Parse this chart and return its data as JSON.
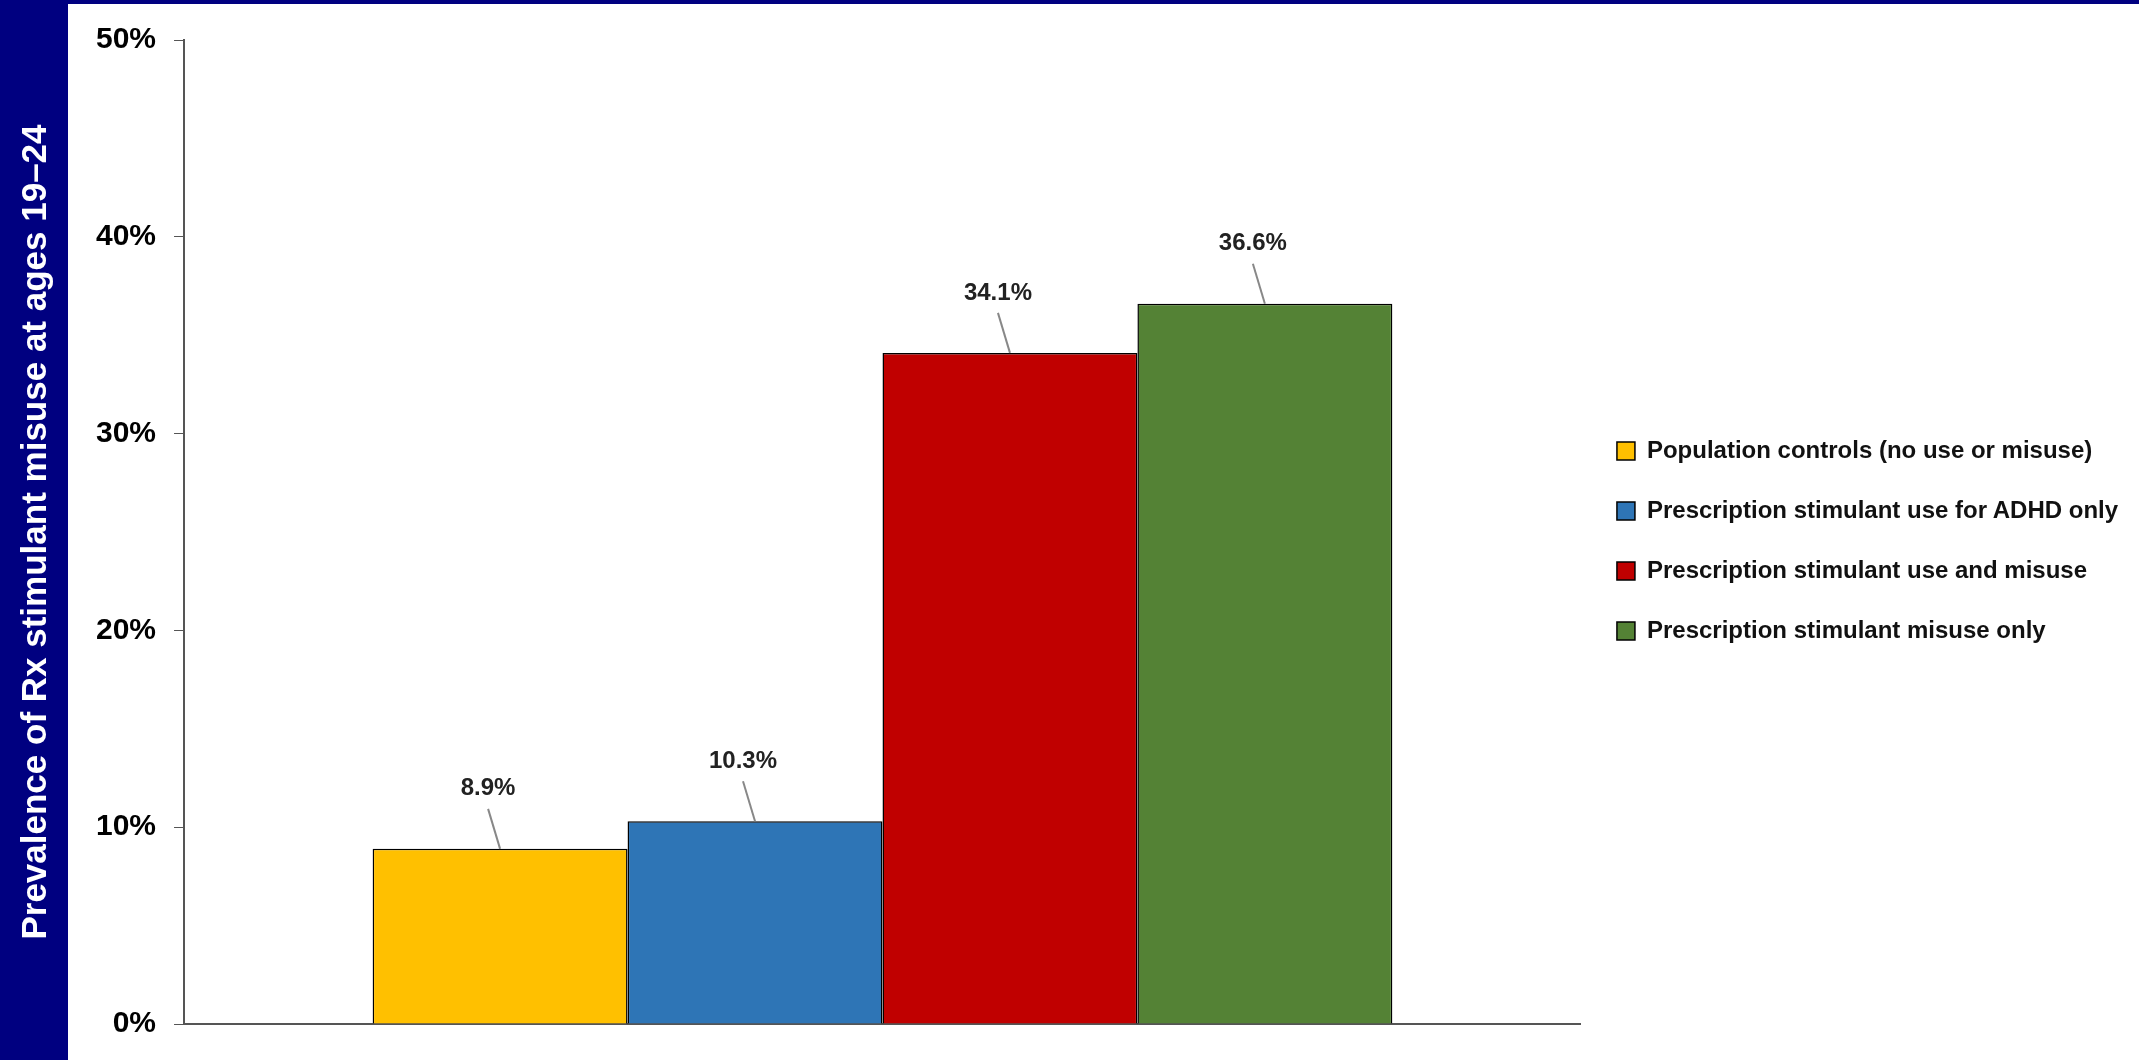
{
  "chart_data": {
    "type": "bar",
    "ylabel": "Prevalence of Rx stimulant misuse at ages 19–24",
    "categories": [
      null
    ],
    "series": [
      {
        "name": "Population controls (no use or misuse)",
        "color": "#ffc000",
        "values": [
          8.9
        ],
        "value_labels": [
          "8.9%"
        ]
      },
      {
        "name": "Prescription stimulant use for ADHD only",
        "color": "#2e75b6",
        "values": [
          10.3
        ],
        "value_labels": [
          "10.3%"
        ]
      },
      {
        "name": "Prescription stimulant use and misuse",
        "color": "#c00000",
        "values": [
          34.1
        ],
        "value_labels": [
          "34.1%"
        ]
      },
      {
        "name": "Prescription stimulant misuse only",
        "color": "#548235",
        "values": [
          36.6
        ],
        "value_labels": [
          "36.6%"
        ]
      }
    ],
    "ylim": [
      0,
      50
    ],
    "yticks": [
      {
        "value": 0,
        "label": "0%"
      },
      {
        "value": 10,
        "label": "10%"
      },
      {
        "value": 20,
        "label": "20%"
      },
      {
        "value": 30,
        "label": "30%"
      },
      {
        "value": 40,
        "label": "40%"
      },
      {
        "value": 50,
        "label": "50%"
      }
    ],
    "grid": false,
    "legend": "right"
  }
}
